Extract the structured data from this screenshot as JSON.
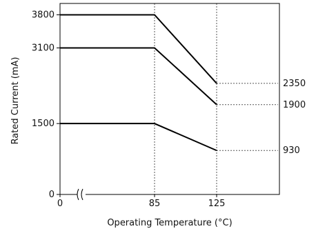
{
  "chart_data": {
    "type": "line",
    "xlabel": "Operating Temperature (°C)",
    "ylabel": "Rated Current (mA)",
    "x_ticks": [
      {
        "value": 0,
        "label": "0"
      },
      {
        "value": 85,
        "label": "85"
      },
      {
        "value": 125,
        "label": "125"
      }
    ],
    "y_ticks": [
      {
        "value": 0,
        "label": "0"
      },
      {
        "value": 1500,
        "label": "1500"
      },
      {
        "value": 3100,
        "label": "3100"
      },
      {
        "value": 3800,
        "label": "3800"
      }
    ],
    "right_labels": [
      {
        "value": 2350,
        "label": "2350"
      },
      {
        "value": 1900,
        "label": "1900"
      },
      {
        "value": 930,
        "label": "930"
      }
    ],
    "axis_break": true,
    "xlim": [
      0,
      165
    ],
    "ylim": [
      0,
      4000
    ],
    "series": [
      {
        "x": [
          0,
          85,
          125
        ],
        "y": [
          3800,
          3800,
          2350
        ]
      },
      {
        "x": [
          0,
          85,
          125
        ],
        "y": [
          3100,
          3100,
          1900
        ]
      },
      {
        "x": [
          0,
          85,
          125
        ],
        "y": [
          1500,
          1500,
          930
        ]
      }
    ]
  }
}
